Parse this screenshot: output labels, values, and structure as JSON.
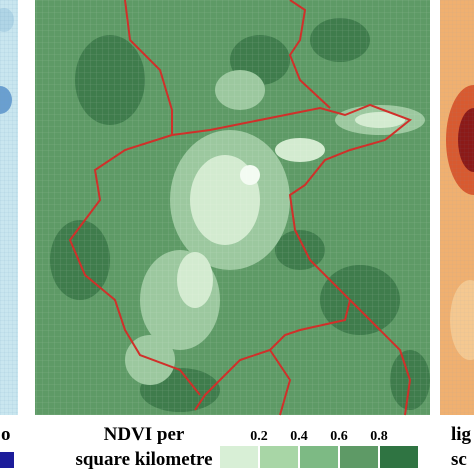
{
  "map": {
    "left_label": "o",
    "title_lines": [
      "NDVI per",
      "square kilometre"
    ],
    "legend_ticks": [
      0.2,
      0.4,
      0.6,
      0.8
    ],
    "right_label_lines": [
      "lig",
      "sc"
    ]
  }
}
